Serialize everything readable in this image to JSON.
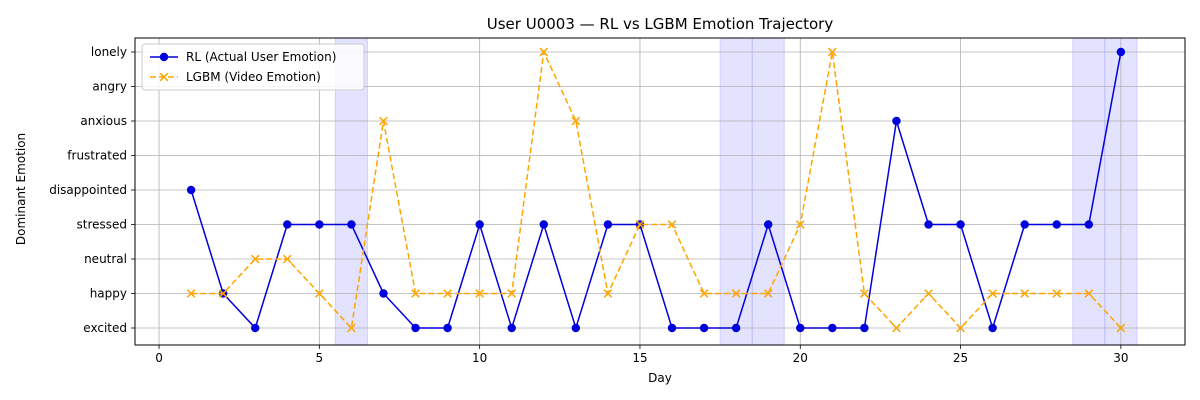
{
  "chart_data": {
    "type": "line",
    "title": "User U0003 — RL vs LGBM Emotion Trajectory",
    "xlabel": "Day",
    "ylabel": "Dominant Emotion",
    "xlim": [
      -0.75,
      32.0
    ],
    "xticks": [
      0,
      5,
      10,
      15,
      20,
      25,
      30
    ],
    "categories": [
      "excited",
      "happy",
      "neutral",
      "stressed",
      "disappointed",
      "frustrated",
      "anxious",
      "angry",
      "lonely"
    ],
    "grid": true,
    "legend_position": "top-left",
    "highlight_ranges": [
      [
        5.5,
        6.5
      ],
      [
        17.5,
        18.5
      ],
      [
        18.5,
        19.5
      ],
      [
        28.5,
        29.5
      ],
      [
        29.5,
        30.5
      ]
    ],
    "highlight_color": "#b0b0ff",
    "x": [
      1,
      2,
      3,
      4,
      5,
      6,
      7,
      8,
      9,
      10,
      11,
      12,
      13,
      14,
      15,
      16,
      17,
      18,
      19,
      20,
      21,
      22,
      23,
      24,
      25,
      26,
      27,
      28,
      29,
      30
    ],
    "series": [
      {
        "name": "RL (Actual User Emotion)",
        "color": "#0000dd",
        "style": "solid",
        "marker": "circle",
        "values": [
          "disappointed",
          "happy",
          "excited",
          "stressed",
          "stressed",
          "stressed",
          "happy",
          "excited",
          "excited",
          "stressed",
          "excited",
          "stressed",
          "excited",
          "stressed",
          "stressed",
          "excited",
          "excited",
          "excited",
          "stressed",
          "excited",
          "excited",
          "excited",
          "anxious",
          "stressed",
          "stressed",
          "excited",
          "stressed",
          "stressed",
          "stressed",
          "lonely"
        ]
      },
      {
        "name": "LGBM (Video Emotion)",
        "color": "#ffa500",
        "style": "dashed",
        "marker": "x",
        "values": [
          "happy",
          "happy",
          "neutral",
          "neutral",
          "happy",
          "excited",
          "anxious",
          "happy",
          "happy",
          "happy",
          "happy",
          "lonely",
          "anxious",
          "happy",
          "stressed",
          "stressed",
          "happy",
          "happy",
          "happy",
          "stressed",
          "lonely",
          "happy",
          "excited",
          "happy",
          "excited",
          "happy",
          "happy",
          "happy",
          "happy",
          "excited"
        ]
      }
    ]
  }
}
